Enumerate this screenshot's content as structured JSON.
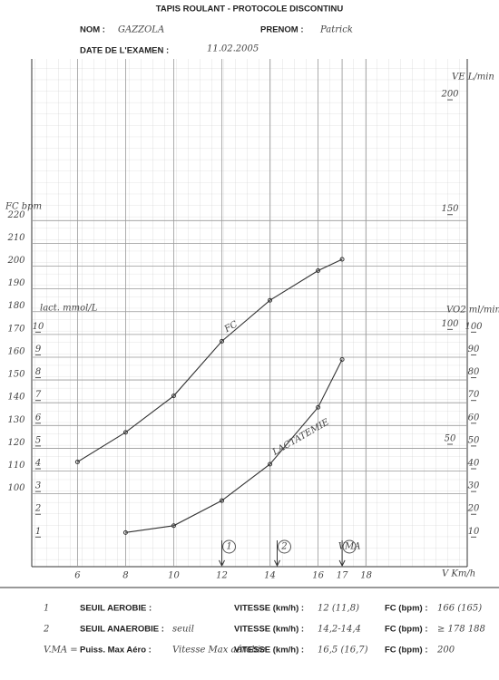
{
  "header": {
    "title": "TAPIS ROULANT  -  PROTOCOLE DISCONTINU",
    "name_label": "NOM :",
    "name": "GAZZOLA",
    "firstname_label": "PRENOM :",
    "firstname": "Patrick",
    "date_label": "DATE DE L'EXAMEN :",
    "date": "11.02.2005"
  },
  "chart_data": {
    "type": "line",
    "x_label": "V  Km/h",
    "y_label": "FC bpm",
    "y2_label": "lact. mmol/L",
    "y3_label": "VO2 ml/min/kg",
    "y4_label": "VE L/min",
    "xlim": [
      4.1,
      22.2
    ],
    "xticks": [
      6,
      8,
      10,
      12,
      14,
      16,
      17,
      18
    ],
    "ylim": [
      68,
      291
    ],
    "yticks": [
      100,
      110,
      120,
      130,
      140,
      150,
      160,
      170,
      180,
      190,
      200,
      210,
      220
    ],
    "y2lim": [
      -0.3,
      22
    ],
    "y2ticks": [
      1,
      2,
      3,
      4,
      5,
      6,
      7,
      8,
      9,
      10
    ],
    "y3lim": [
      -3,
      220
    ],
    "y3ticks": [
      10,
      20,
      30,
      40,
      50,
      60,
      70,
      80,
      90,
      100
    ],
    "y4lim": [
      -3.3,
      217.8
    ],
    "y4ticks": [
      50,
      100,
      150,
      200
    ],
    "grid": true,
    "series": [
      {
        "name": "FC",
        "color": "#333333",
        "x": [
          6,
          8,
          10,
          12,
          14,
          16,
          17
        ],
        "values": [
          114,
          127,
          143,
          167,
          185,
          198,
          203
        ]
      },
      {
        "name": "LACTATEMIE",
        "color": "#333333",
        "axis": "y2",
        "x": [
          8,
          10,
          12,
          14,
          16,
          17
        ],
        "values": [
          1.2,
          1.5,
          2.6,
          4.2,
          6.7,
          8.8
        ]
      }
    ],
    "threshold_markers": [
      {
        "label": "1",
        "x": 12
      },
      {
        "label": "2",
        "x": 14.3
      },
      {
        "label": "VMA",
        "x": 17
      }
    ]
  },
  "results": {
    "rows": [
      {
        "marker": "1",
        "label": "SEUIL AEROBIE :",
        "note": "",
        "speed_label": "VITESSE (km/h) :",
        "speed": "12 (11,8)",
        "hr_label": "FC (bpm) :",
        "hr": "166 (165)"
      },
      {
        "marker": "2",
        "label": "SEUIL ANAEROBIE :",
        "note": "seuil",
        "speed_label": "VITESSE (km/h) :",
        "speed": "14,2-14,4",
        "hr_label": "FC (bpm) :",
        "hr": "≥ 178 188"
      },
      {
        "marker": "V.MA =",
        "label": "Puiss.  Max Aéro :",
        "note": "Vitesse Max aérobie",
        "speed_label": "VITESSE (km/h) :",
        "speed": "16,5 (16,7)",
        "hr_label": "FC (bpm) :",
        "hr": "200"
      }
    ]
  }
}
